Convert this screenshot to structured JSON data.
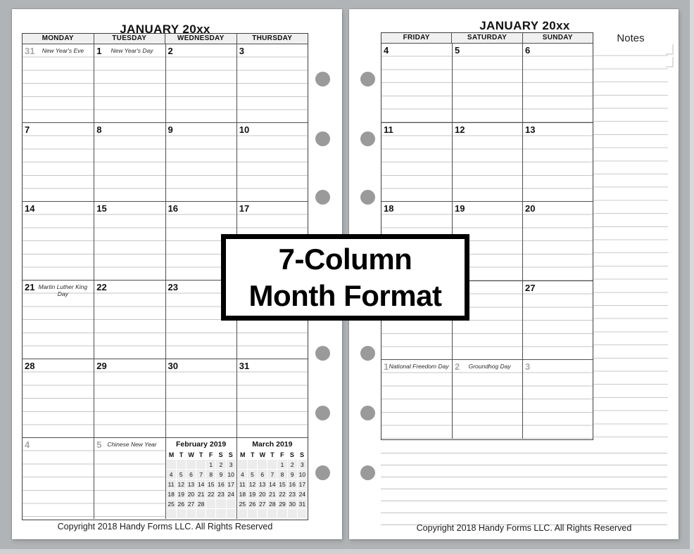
{
  "colors": {
    "background": "#b1b4b6",
    "page": "#ffffff",
    "grid_dark": "#4f4f4f",
    "ruled_line": "#c6c6c6",
    "header_bg": "#f0f0f0",
    "adjacent_month_date": "#a9a9a9",
    "binder_hole": "#9a9a9a"
  },
  "overlay": {
    "line1": "7-Column",
    "line2": "Month Format"
  },
  "left_page": {
    "title": "JANUARY 20xx",
    "day_headers": [
      "MONDAY",
      "TUESDAY",
      "WEDNESDAY",
      "THURSDAY"
    ],
    "weeks": [
      {
        "cells": [
          {
            "date": "31",
            "gray": true,
            "holiday": "New Year's Eve"
          },
          {
            "date": "1",
            "holiday": "New Year's Day"
          },
          {
            "date": "2"
          },
          {
            "date": "3"
          }
        ]
      },
      {
        "cells": [
          {
            "date": "7"
          },
          {
            "date": "8"
          },
          {
            "date": "9"
          },
          {
            "date": "10"
          }
        ]
      },
      {
        "cells": [
          {
            "date": "14"
          },
          {
            "date": "15"
          },
          {
            "date": "16"
          },
          {
            "date": "17"
          }
        ]
      },
      {
        "cells": [
          {
            "date": "21",
            "holiday": "Martin Luther King Day"
          },
          {
            "date": "22"
          },
          {
            "date": "23"
          },
          {
            "date": ""
          }
        ]
      },
      {
        "cells": [
          {
            "date": "28"
          },
          {
            "date": "29"
          },
          {
            "date": "30"
          },
          {
            "date": "31"
          }
        ]
      },
      {
        "cells": [
          {
            "date": "4",
            "gray": true
          },
          {
            "date": "5",
            "gray": true,
            "holiday": "Chinese New Year"
          }
        ]
      }
    ],
    "copyright": "Copyright 2018 Handy Forms LLC. All Rights Reserved"
  },
  "mini_calendars": [
    {
      "title": "February 2019",
      "day_headers": [
        "M",
        "T",
        "W",
        "T",
        "F",
        "S",
        "S"
      ],
      "rows": [
        [
          "",
          "",
          "",
          "",
          "1",
          "2",
          "3"
        ],
        [
          "4",
          "5",
          "6",
          "7",
          "8",
          "9",
          "10"
        ],
        [
          "11",
          "12",
          "13",
          "14",
          "15",
          "16",
          "17"
        ],
        [
          "18",
          "19",
          "20",
          "21",
          "22",
          "23",
          "24"
        ],
        [
          "25",
          "26",
          "27",
          "28",
          "",
          "",
          ""
        ],
        [
          "",
          "",
          "",
          "",
          "",
          "",
          ""
        ]
      ]
    },
    {
      "title": "March 2019",
      "day_headers": [
        "M",
        "T",
        "W",
        "T",
        "F",
        "S",
        "S"
      ],
      "rows": [
        [
          "",
          "",
          "",
          "",
          "1",
          "2",
          "3"
        ],
        [
          "4",
          "5",
          "6",
          "7",
          "8",
          "9",
          "10"
        ],
        [
          "11",
          "12",
          "13",
          "14",
          "15",
          "16",
          "17"
        ],
        [
          "18",
          "19",
          "20",
          "21",
          "22",
          "23",
          "24"
        ],
        [
          "25",
          "26",
          "27",
          "28",
          "29",
          "30",
          "31"
        ],
        [
          "",
          "",
          "",
          "",
          "",
          "",
          ""
        ]
      ]
    }
  ],
  "right_page": {
    "title": "JANUARY 20xx",
    "day_headers": [
      "FRIDAY",
      "SATURDAY",
      "SUNDAY"
    ],
    "notes_label": "Notes",
    "weeks": [
      {
        "cells": [
          {
            "date": "4"
          },
          {
            "date": "5"
          },
          {
            "date": "6"
          }
        ]
      },
      {
        "cells": [
          {
            "date": "11"
          },
          {
            "date": "12"
          },
          {
            "date": "13"
          }
        ]
      },
      {
        "cells": [
          {
            "date": "18"
          },
          {
            "date": "19"
          },
          {
            "date": "20"
          }
        ]
      },
      {
        "cells": [
          {
            "date": ""
          },
          {
            "date": ""
          },
          {
            "date": "27"
          }
        ]
      },
      {
        "cells": [
          {
            "date": "1",
            "gray": true,
            "holiday": "National Freedom Day"
          },
          {
            "date": "2",
            "gray": true,
            "holiday": "Groundhog Day"
          },
          {
            "date": "3",
            "gray": true
          }
        ]
      }
    ],
    "copyright": "Copyright 2018 Handy Forms LLC. All Rights Reserved"
  }
}
